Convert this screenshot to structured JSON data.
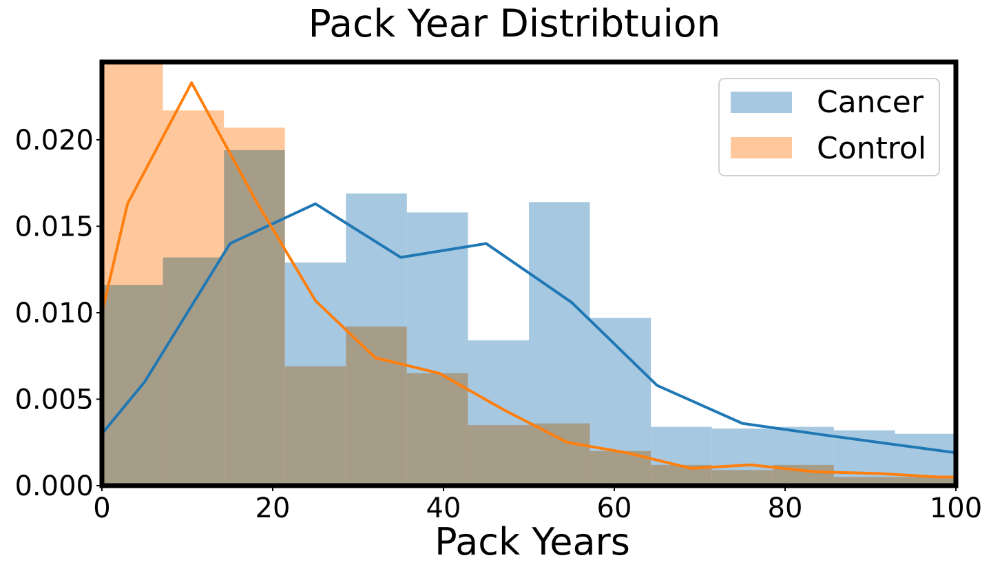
{
  "chart_data": {
    "type": "histogram",
    "title": "Pack Year Distribtuion",
    "xlabel": "Pack Years",
    "ylabel": "",
    "xlim": [
      0,
      100
    ],
    "ylim": [
      0,
      0.0245
    ],
    "xticks": [
      0,
      20,
      40,
      60,
      80,
      100
    ],
    "xtick_labels": [
      "0",
      "20",
      "40",
      "60",
      "80",
      "100"
    ],
    "yticks": [
      0,
      0.005,
      0.01,
      0.015,
      0.02
    ],
    "ytick_labels": [
      "0.000",
      "0.005",
      "0.010",
      "0.015",
      "0.020"
    ],
    "grid": false,
    "legend_position": "top-right",
    "bin_edges": [
      0,
      7.14,
      14.29,
      21.43,
      28.57,
      35.71,
      42.86,
      50,
      57.14,
      64.29,
      71.43,
      78.57,
      85.71,
      92.86,
      100
    ],
    "series": [
      {
        "name": "Cancer",
        "bar_color": "#a6c8e0",
        "line_color": "#1f77b4",
        "bar_values": [
          0.0116,
          0.0132,
          0.0194,
          0.0129,
          0.0169,
          0.0158,
          0.0084,
          0.0164,
          0.0097,
          0.0034,
          0.0033,
          0.0034,
          0.0032,
          0.003
        ],
        "kde_x": [
          0,
          5,
          15,
          25,
          35,
          45,
          55,
          65,
          75,
          85,
          100
        ],
        "kde_y": [
          0.003,
          0.006,
          0.014,
          0.0163,
          0.0132,
          0.014,
          0.0106,
          0.0058,
          0.0036,
          0.0029,
          0.0019
        ]
      },
      {
        "name": "Control",
        "bar_color": "#ffc89c",
        "line_color": "#ff7f0e",
        "bar_values": [
          0.0245,
          0.0217,
          0.0207,
          0.0069,
          0.0092,
          0.0065,
          0.0035,
          0.0036,
          0.002,
          0.0012,
          0.0009,
          0.0012,
          0.0005,
          0.0005
        ],
        "kde_x": [
          0,
          3,
          10.5,
          18,
          25,
          32,
          39.5,
          47,
          54.5,
          61.5,
          69,
          76,
          83.5,
          91,
          98,
          100
        ],
        "kde_y": [
          0.01,
          0.0163,
          0.0233,
          0.0165,
          0.0107,
          0.0074,
          0.0065,
          0.0044,
          0.0025,
          0.0019,
          0.001,
          0.0012,
          0.0008,
          0.0007,
          0.0005,
          0.0005
        ]
      }
    ]
  }
}
